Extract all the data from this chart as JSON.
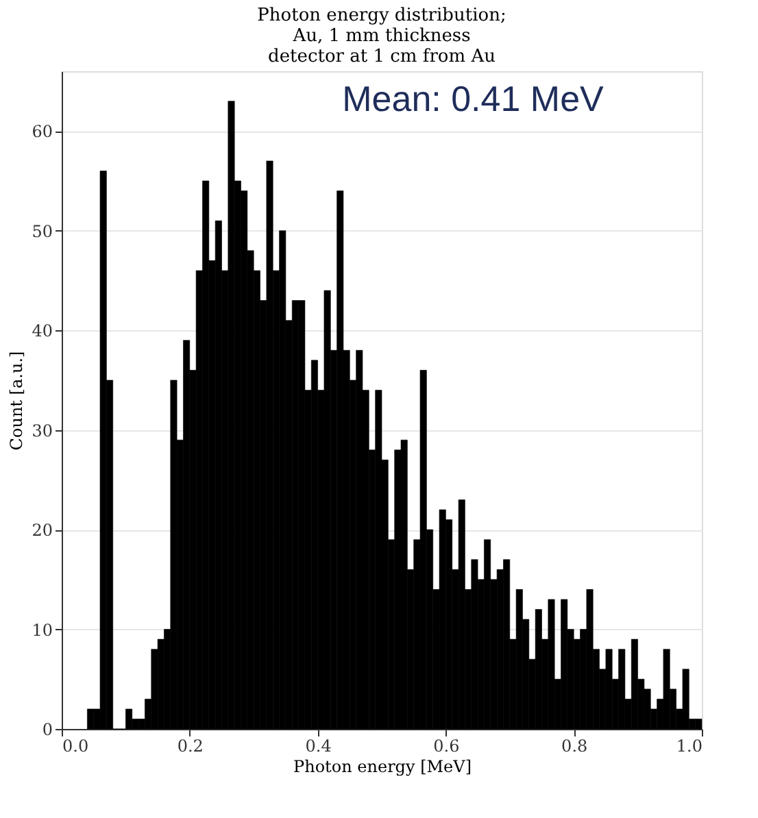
{
  "chart_data": {
    "type": "histogram",
    "title": [
      "Photon energy distribution;",
      "Au, 1 mm thickness",
      "detector at 1 cm from Au"
    ],
    "xlabel": "Photon energy [MeV]",
    "ylabel": "Count [a.u.]",
    "annotations": [
      "Mean: 0.41 MeV"
    ],
    "bins": [
      0.04,
      0.05,
      0.06,
      0.07,
      0.08,
      0.09,
      0.1,
      0.11,
      0.12,
      0.13,
      0.14,
      0.15,
      0.16,
      0.17,
      0.18,
      0.19,
      0.2,
      0.21,
      0.22,
      0.23,
      0.24,
      0.25,
      0.26,
      0.27,
      0.28,
      0.29,
      0.3,
      0.31,
      0.32,
      0.33,
      0.34,
      0.35,
      0.36,
      0.37,
      0.38,
      0.39,
      0.4,
      0.41,
      0.42,
      0.43,
      0.44,
      0.45,
      0.46,
      0.47,
      0.48,
      0.49,
      0.5,
      0.51,
      0.52,
      0.53,
      0.54,
      0.55,
      0.56,
      0.57,
      0.58,
      0.59,
      0.6,
      0.61,
      0.62,
      0.63,
      0.64,
      0.65,
      0.66,
      0.67,
      0.68,
      0.69,
      0.7,
      0.71,
      0.72,
      0.73,
      0.74,
      0.75,
      0.76,
      0.77,
      0.78,
      0.79,
      0.8,
      0.81,
      0.82,
      0.83,
      0.84,
      0.85,
      0.86,
      0.87,
      0.88,
      0.89,
      0.9,
      0.91,
      0.92,
      0.93,
      0.94,
      0.95,
      0.96,
      0.97,
      0.98,
      0.99,
      1.0
    ],
    "values": [
      2,
      2,
      56,
      35,
      0,
      0,
      2,
      1,
      1,
      3,
      8,
      9,
      10,
      35,
      29,
      39,
      36,
      46,
      55,
      47,
      51,
      46,
      63,
      55,
      54,
      48,
      46,
      43,
      57,
      46,
      50,
      41,
      43,
      43,
      34,
      37,
      34,
      44,
      38,
      54,
      38,
      35,
      38,
      34,
      28,
      34,
      27,
      19,
      28,
      29,
      16,
      19,
      36,
      20,
      14,
      22,
      21,
      16,
      23,
      14,
      17,
      15,
      19,
      15,
      16,
      17,
      9,
      14,
      11,
      7,
      12,
      9,
      13,
      5,
      13,
      10,
      9,
      10,
      14,
      8,
      6,
      8,
      5,
      8,
      3,
      9,
      5,
      4,
      2,
      3,
      8,
      4,
      2,
      6,
      1,
      1
    ],
    "color": "#000000",
    "xlim": [
      0,
      1
    ],
    "ylim": [
      0,
      66
    ],
    "xticks": [
      {
        "value": 0,
        "label": "0.0"
      },
      0.2,
      0.4,
      0.6,
      0.8,
      {
        "value": 1,
        "label": "1.0"
      }
    ],
    "yticks": [
      0,
      10,
      20,
      30,
      40,
      50,
      60
    ],
    "grid": "y"
  }
}
